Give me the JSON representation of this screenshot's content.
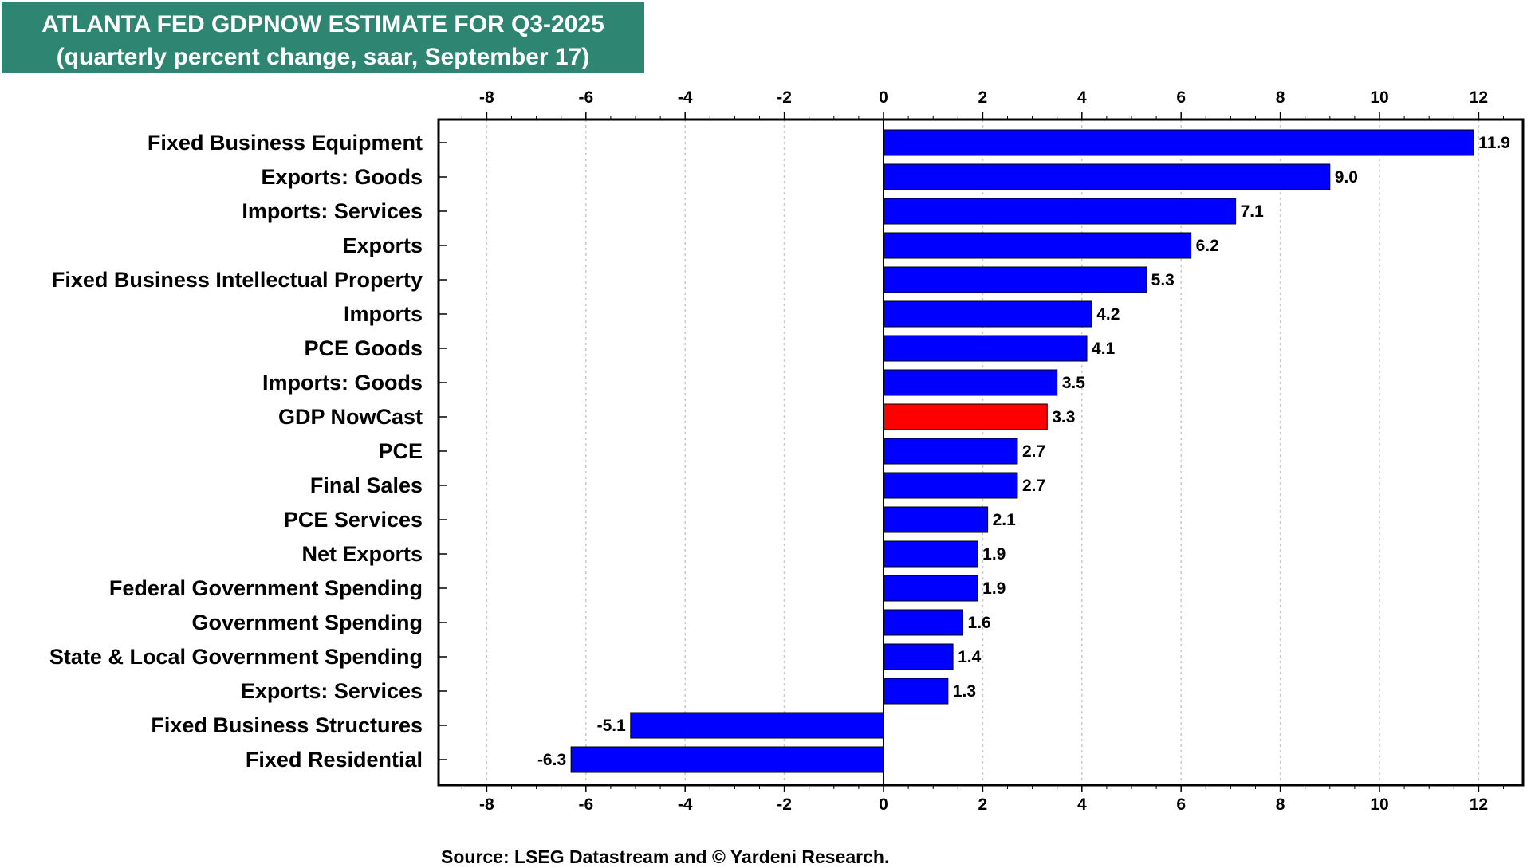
{
  "title": {
    "line1": "ATLANTA FED GDPNOW ESTIMATE FOR Q3-2025",
    "line2": "(quarterly percent change, saar, September 17)"
  },
  "source": "Source: LSEG Datastream and © Yardeni Research.",
  "colors": {
    "title_bg": "#2e8571",
    "bar": "#0000ff",
    "highlight": "#ff0000",
    "grid": "#c8c8c8"
  },
  "chart_data": {
    "type": "bar",
    "orientation": "horizontal",
    "title": "ATLANTA FED GDPNOW ESTIMATE FOR Q3-2025",
    "subtitle": "(quarterly percent change, saar, September 17)",
    "xlim": [
      -9,
      13
    ],
    "xticks": [
      -8,
      -6,
      -4,
      -2,
      0,
      2,
      4,
      6,
      8,
      10,
      12
    ],
    "grid": "vertical dotted",
    "highlight": "GDP NowCast",
    "categories": [
      "Fixed Business Equipment",
      "Exports: Goods",
      "Imports: Services",
      "Exports",
      "Fixed Business Intellectual Property",
      "Imports",
      "PCE Goods",
      "Imports: Goods",
      "GDP NowCast",
      "PCE",
      "Final Sales",
      "PCE Services",
      "Net Exports",
      "Federal Government Spending",
      "Government Spending",
      "State & Local Government Spending",
      "Exports: Services",
      "Fixed Business Structures",
      "Fixed Residential"
    ],
    "values": [
      11.9,
      9.0,
      7.1,
      6.2,
      5.3,
      4.2,
      4.1,
      3.5,
      3.3,
      2.7,
      2.7,
      2.1,
      1.9,
      1.9,
      1.6,
      1.4,
      1.3,
      -5.1,
      -6.3
    ],
    "labels": [
      "11.9",
      "9.0",
      "7.1",
      "6.2",
      "5.3",
      "4.2",
      "4.1",
      "3.5",
      "3.3",
      "2.7",
      "2.7",
      "2.1",
      "1.9",
      "1.9",
      "1.6",
      "1.4",
      "1.3",
      "-5.1",
      "-6.3"
    ]
  }
}
